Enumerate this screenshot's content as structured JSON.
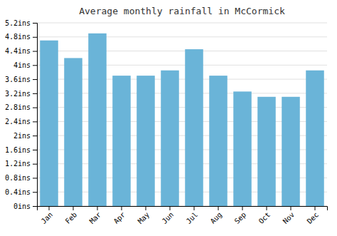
{
  "chart_data": {
    "type": "bar",
    "title": "Average monthly rainfall in McCormick",
    "categories": [
      "Jan",
      "Feb",
      "Mar",
      "Apr",
      "May",
      "Jun",
      "Jul",
      "Aug",
      "Sep",
      "Oct",
      "Nov",
      "Dec"
    ],
    "values": [
      4.7,
      4.2,
      4.9,
      3.7,
      3.7,
      3.85,
      4.45,
      3.7,
      3.25,
      3.1,
      3.1,
      3.85
    ],
    "color": "#6ab4d8",
    "ylim": [
      0,
      5.2
    ],
    "yticks": [
      {
        "value": 0,
        "label": "0ins"
      },
      {
        "value": 0.4,
        "label": "0.4ins"
      },
      {
        "value": 0.8,
        "label": "0.8ins"
      },
      {
        "value": 1.2,
        "label": "1.2ins"
      },
      {
        "value": 1.6,
        "label": "1.6ins"
      },
      {
        "value": 2,
        "label": "2ins"
      },
      {
        "value": 2.4,
        "label": "2.4ins"
      },
      {
        "value": 2.8,
        "label": "2.8ins"
      },
      {
        "value": 3.2,
        "label": "3.2ins"
      },
      {
        "value": 3.6,
        "label": "3.6ins"
      },
      {
        "value": 4,
        "label": "4ins"
      },
      {
        "value": 4.4,
        "label": "4.4ins"
      },
      {
        "value": 4.8,
        "label": "4.8ins"
      },
      {
        "value": 5.2,
        "label": "5.2ins"
      }
    ],
    "grid": true
  }
}
